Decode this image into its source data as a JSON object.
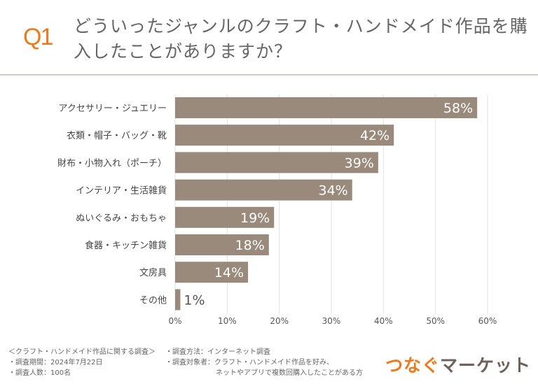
{
  "header": {
    "q": "Q1",
    "title": "どういったジャンルのクラフト・ハンドメイド作品を購入したことがありますか？"
  },
  "chart_data": {
    "type": "bar",
    "orientation": "horizontal",
    "categories": [
      "アクセサリー・ジュエリー",
      "衣類・帽子・バッグ・靴",
      "財布・小物入れ（ポーチ）",
      "インテリア・生活雑貨",
      "ぬいぐるみ・おもちゃ",
      "食器・キッチン雑貨",
      "文房具",
      "その他"
    ],
    "values": [
      58,
      42,
      39,
      34,
      19,
      18,
      14,
      1
    ],
    "value_labels": [
      "58%",
      "42%",
      "39%",
      "34%",
      "19%",
      "18%",
      "14%",
      "1%"
    ],
    "xlim": [
      0,
      60
    ],
    "xticks": [
      "0%",
      "10%",
      "20%",
      "30%",
      "40%",
      "50%",
      "60%"
    ],
    "grid": true,
    "bar_color": "#9a8a7c"
  },
  "notes": {
    "survey": "＜クラフト・ハンドメイド作品に関する調査＞",
    "period": "・調査期間：2024年7月22日",
    "count": "・調査人数：100名",
    "method": "・調査方法：インターネット調査",
    "target1": "・調査対象者：クラフト・ハンドメイド作品を好み、",
    "target2": "ネットやアプリで複数回購入したことがある方"
  },
  "logo": {
    "part1": "つなぐ",
    "part2": "マーケット",
    "color1": "#ee7a1e",
    "color2": "#6e6258"
  }
}
